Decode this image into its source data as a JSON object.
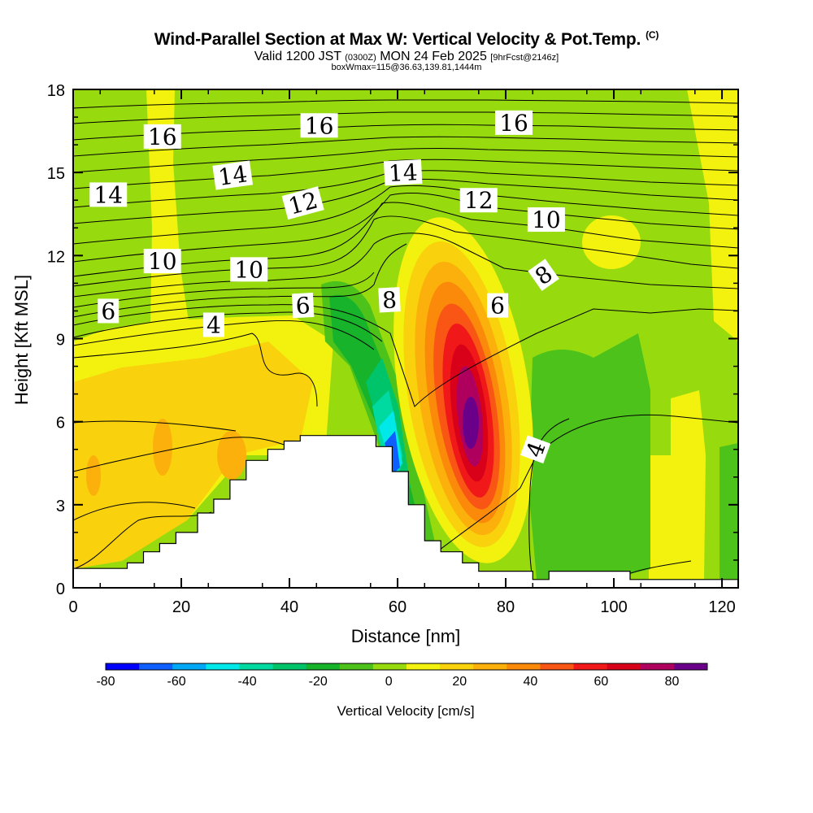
{
  "header": {
    "title": "Wind-Parallel Section at Max W: Vertical Velocity & Pot.Temp.",
    "copyright": "(C)",
    "valid_prefix": "Valid 1200 JST",
    "valid_zulu": "(0300Z)",
    "valid_date": "MON 24 Feb 2025",
    "forecast": "[9hrFcst@2146z]",
    "box_info": "boxWmax=115@36.63,139.81,1444m"
  },
  "chart_data": {
    "type": "heatmap",
    "xlabel": "Distance [nm]",
    "ylabel": "Height [Kft MSL]",
    "xlim": [
      0,
      123
    ],
    "ylim": [
      0,
      18
    ],
    "x_ticks": [
      "0",
      "20",
      "40",
      "60",
      "80",
      "100",
      "120"
    ],
    "y_ticks": [
      "0",
      "3",
      "6",
      "9",
      "12",
      "15",
      "18"
    ],
    "colorbar": {
      "title": "Vertical Velocity [cm/s]",
      "tick_labels": [
        "-80",
        "-60",
        "-40",
        "-20",
        "0",
        "20",
        "40",
        "60",
        "80"
      ],
      "levels": [
        -80,
        -70,
        -60,
        -50,
        -40,
        -30,
        -20,
        -10,
        0,
        10,
        20,
        30,
        40,
        50,
        60,
        70,
        80,
        90
      ],
      "colors": [
        "#0000ff",
        "#0f5fff",
        "#00a8f5",
        "#00e8e8",
        "#00d9a0",
        "#00c46a",
        "#17b32a",
        "#4cc21a",
        "#97db0f",
        "#f2f20e",
        "#f9d10c",
        "#fbb00b",
        "#fb8a0b",
        "#f95514",
        "#f01818",
        "#d9001a",
        "#b0005e",
        "#6a008a"
      ]
    },
    "contour_labels": [
      {
        "text": "16",
        "x": 16.5,
        "y": 16.3
      },
      {
        "text": "16",
        "x": 45.5,
        "y": 16.7
      },
      {
        "text": "16",
        "x": 81.5,
        "y": 16.8
      },
      {
        "text": "14",
        "x": 6.5,
        "y": 14.2
      },
      {
        "text": "14",
        "x": 29.5,
        "y": 14.9
      },
      {
        "text": "14",
        "x": 61.0,
        "y": 15.0
      },
      {
        "text": "12",
        "x": 42.5,
        "y": 13.9
      },
      {
        "text": "12",
        "x": 75.0,
        "y": 14.0
      },
      {
        "text": "10",
        "x": 16.5,
        "y": 11.8
      },
      {
        "text": "10",
        "x": 32.5,
        "y": 11.5
      },
      {
        "text": "10",
        "x": 87.5,
        "y": 13.3
      },
      {
        "text": "8",
        "x": 58.5,
        "y": 10.4
      },
      {
        "text": "8",
        "x": 87.0,
        "y": 11.3
      },
      {
        "text": "6",
        "x": 6.5,
        "y": 10.0
      },
      {
        "text": "6",
        "x": 42.5,
        "y": 10.2
      },
      {
        "text": "6",
        "x": 78.5,
        "y": 10.2
      },
      {
        "text": "4",
        "x": 26.0,
        "y": 9.5
      },
      {
        "text": "4",
        "x": 85.5,
        "y": 5.0
      }
    ],
    "terrain_profile": [
      [
        0,
        0.7
      ],
      [
        10,
        0.7
      ],
      [
        10,
        0.9
      ],
      [
        13,
        0.9
      ],
      [
        13,
        1.3
      ],
      [
        16,
        1.3
      ],
      [
        16,
        1.6
      ],
      [
        19,
        1.6
      ],
      [
        19,
        2.0
      ],
      [
        23,
        2.0
      ],
      [
        23,
        2.7
      ],
      [
        26,
        2.7
      ],
      [
        26,
        3.2
      ],
      [
        29,
        3.2
      ],
      [
        29,
        3.9
      ],
      [
        32,
        3.9
      ],
      [
        32,
        4.6
      ],
      [
        36,
        4.6
      ],
      [
        36,
        5.0
      ],
      [
        39,
        5.0
      ],
      [
        39,
        5.3
      ],
      [
        42,
        5.3
      ],
      [
        42,
        5.5
      ],
      [
        56,
        5.5
      ],
      [
        56,
        5.1
      ],
      [
        59,
        5.1
      ],
      [
        59,
        4.2
      ],
      [
        62,
        4.2
      ],
      [
        62,
        3.0
      ],
      [
        65,
        3.0
      ],
      [
        65,
        1.7
      ],
      [
        68,
        1.7
      ],
      [
        68,
        1.3
      ],
      [
        72,
        1.3
      ],
      [
        72,
        0.9
      ],
      [
        75,
        0.9
      ],
      [
        75,
        0.6
      ],
      [
        85,
        0.6
      ],
      [
        85,
        0.3
      ],
      [
        88,
        0.3
      ],
      [
        88,
        0.6
      ],
      [
        103,
        0.6
      ],
      [
        103,
        0.3
      ],
      [
        123,
        0.3
      ]
    ]
  }
}
